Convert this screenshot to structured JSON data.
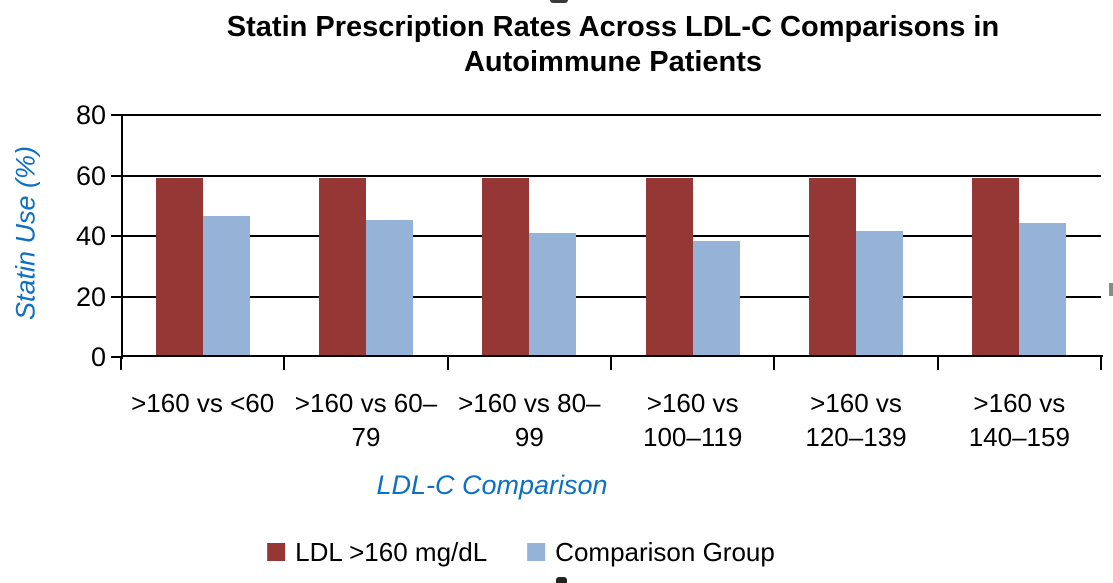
{
  "chart_data": {
    "type": "bar",
    "title": "Statin Prescription Rates Across LDL-C Comparisons in Autoimmune Patients",
    "title_lines": [
      "Statin Prescription Rates Across LDL-C Comparisons in",
      "Autoimmune Patients"
    ],
    "xlabel": "LDL-C Comparison",
    "ylabel": "Statin Use (%)",
    "categories": [
      ">160 vs <60",
      ">160 vs 60–79",
      ">160 vs 80–99",
      ">160 vs 100–119",
      ">160 vs 120–139",
      ">160 vs 140–159"
    ],
    "category_label_lines": [
      [
        ">160 vs <60"
      ],
      [
        ">160 vs 60–",
        "79"
      ],
      [
        ">160 vs 80–",
        "99"
      ],
      [
        ">160 vs",
        "100–119"
      ],
      [
        ">160 vs",
        "120–139"
      ],
      [
        ">160 vs",
        "140–159"
      ]
    ],
    "series": [
      {
        "name": "LDL >160 mg/dL",
        "color": "#953734",
        "values": [
          59.2,
          59.2,
          59.2,
          59.2,
          59.2,
          59.2
        ]
      },
      {
        "name": "Comparison Group",
        "color": "#95B3D7",
        "values": [
          46.6,
          45.4,
          40.9,
          38.4,
          41.5,
          44.3
        ]
      }
    ],
    "ylim": [
      0,
      80
    ],
    "yticks": [
      0,
      20,
      40,
      60,
      80
    ],
    "grid": true,
    "legend_position": "bottom"
  },
  "colors": {
    "axis_title_blue": "#0C70C4",
    "axis_line": "#000000",
    "gridline": "#000000",
    "text": "#000000"
  }
}
